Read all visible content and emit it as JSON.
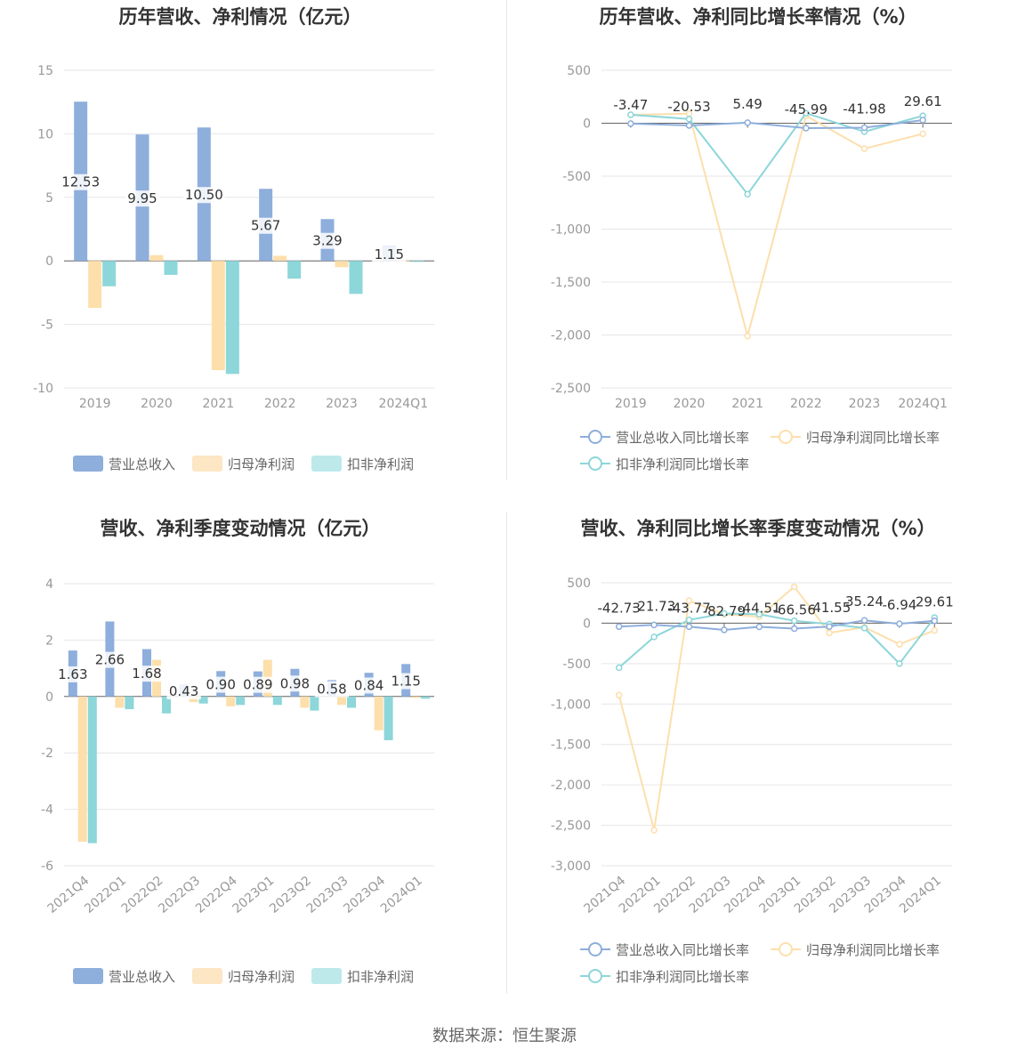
{
  "colors": {
    "revenue": "#8eaedc",
    "netprofit": "#fddfac",
    "deducted": "#8dd6d9",
    "grid": "#e6e6ea",
    "axis": "#666666"
  },
  "source": "数据来源：恒生聚源",
  "legend_bar": [
    "营业总收入",
    "归母净利润",
    "扣非净利润"
  ],
  "legend_line": [
    "营业总收入同比增长率",
    "归母净利润同比增长率",
    "扣非净利润同比增长率"
  ],
  "chart_data": [
    {
      "type": "bar",
      "title": "历年营收、净利情况（亿元）",
      "categories": [
        "2019",
        "2020",
        "2021",
        "2022",
        "2023",
        "2024Q1"
      ],
      "ylim": [
        -10,
        15
      ],
      "yticks": [
        15,
        10,
        5,
        0,
        -5,
        -10
      ],
      "series": [
        {
          "name": "营业总收入",
          "values": [
            12.53,
            9.95,
            10.5,
            5.67,
            3.29,
            1.15
          ]
        },
        {
          "name": "归母净利润",
          "values": [
            -3.7,
            0.45,
            -8.6,
            0.4,
            -0.5,
            -0.05
          ]
        },
        {
          "name": "扣非净利润",
          "values": [
            -2.0,
            -1.1,
            -8.9,
            -1.4,
            -2.6,
            -0.08
          ]
        }
      ],
      "labels": [
        "12.53",
        "9.95",
        "10.50",
        "5.67",
        "3.29",
        "1.15"
      ],
      "grid": true,
      "legend": "bottom"
    },
    {
      "type": "line",
      "title": "历年营收、净利同比增长率情况（%）",
      "categories": [
        "2019",
        "2020",
        "2021",
        "2022",
        "2023",
        "2024Q1"
      ],
      "ylim": [
        -2500,
        500
      ],
      "yticks": [
        500,
        0,
        -500,
        -1000,
        -1500,
        -2000,
        -2500
      ],
      "ytick_labels": [
        "500",
        "0",
        "-500",
        "-1,000",
        "-1,500",
        "-2,000",
        "-2,500"
      ],
      "series": [
        {
          "name": "营业总收入同比增长率",
          "values": [
            -3.47,
            -20.53,
            5.49,
            -45.99,
            -41.98,
            29.61
          ]
        },
        {
          "name": "归母净利润同比增长率",
          "values": [
            80,
            90,
            -2010,
            70,
            -240,
            -100
          ]
        },
        {
          "name": "扣非净利润同比增长率",
          "values": [
            80,
            40,
            -670,
            95,
            -80,
            70
          ]
        }
      ],
      "labels": [
        "-3.47",
        "-20.53",
        "5.49",
        "-45.99",
        "-41.98",
        "29.61"
      ],
      "grid": true,
      "legend": "bottom"
    },
    {
      "type": "bar",
      "title": "营收、净利季度变动情况（亿元）",
      "categories": [
        "2021Q4",
        "2022Q1",
        "2022Q2",
        "2022Q3",
        "2022Q4",
        "2023Q1",
        "2023Q2",
        "2023Q3",
        "2023Q4",
        "2024Q1"
      ],
      "ylim": [
        -6,
        4
      ],
      "yticks": [
        4,
        2,
        0,
        -2,
        -4,
        -6
      ],
      "series": [
        {
          "name": "营业总收入",
          "values": [
            1.63,
            2.66,
            1.68,
            0.43,
            0.9,
            0.89,
            0.98,
            0.58,
            0.84,
            1.15
          ]
        },
        {
          "name": "归母净利润",
          "values": [
            -5.15,
            -0.4,
            1.3,
            -0.2,
            -0.35,
            1.3,
            -0.4,
            -0.3,
            -1.2,
            -0.05
          ]
        },
        {
          "name": "扣非净利润",
          "values": [
            -5.2,
            -0.45,
            -0.6,
            -0.25,
            -0.3,
            -0.3,
            -0.5,
            -0.4,
            -1.55,
            -0.08
          ]
        }
      ],
      "labels": [
        "1.63",
        "2.66",
        "1.68",
        "0.43",
        "0.90",
        "0.89",
        "0.98",
        "0.58",
        "0.84",
        "1.15"
      ],
      "grid": true,
      "legend": "bottom"
    },
    {
      "type": "line",
      "title": "营收、净利同比增长率季度变动情况（%）",
      "categories": [
        "2021Q4",
        "2022Q1",
        "2022Q2",
        "2022Q3",
        "2022Q4",
        "2023Q1",
        "2023Q2",
        "2023Q3",
        "2023Q4",
        "2024Q1"
      ],
      "ylim": [
        -3000,
        500
      ],
      "yticks": [
        500,
        0,
        -500,
        -1000,
        -1500,
        -2000,
        -2500,
        -3000
      ],
      "ytick_labels": [
        "500",
        "0",
        "-500",
        "-1,000",
        "-1,500",
        "-2,000",
        "-2,500",
        "-3,000"
      ],
      "series": [
        {
          "name": "营业总收入同比增长率",
          "values": [
            -42.73,
            -21.73,
            -43.77,
            -82.79,
            -44.51,
            -66.56,
            -41.55,
            35.24,
            -6.94,
            29.61
          ]
        },
        {
          "name": "归母净利润同比增长率",
          "values": [
            -890,
            -2560,
            280,
            110,
            80,
            450,
            -120,
            -50,
            -260,
            -90
          ]
        },
        {
          "name": "扣非净利润同比增长率",
          "values": [
            -550,
            -170,
            40,
            120,
            110,
            30,
            -10,
            -60,
            -500,
            70
          ]
        }
      ],
      "labels": [
        "-42.73",
        "-21.73",
        "-43.77",
        "-82.79",
        "-44.51",
        "-66.56",
        "-41.55",
        "35.24",
        "-6.94",
        "29.61"
      ],
      "grid": true,
      "legend": "bottom"
    }
  ]
}
